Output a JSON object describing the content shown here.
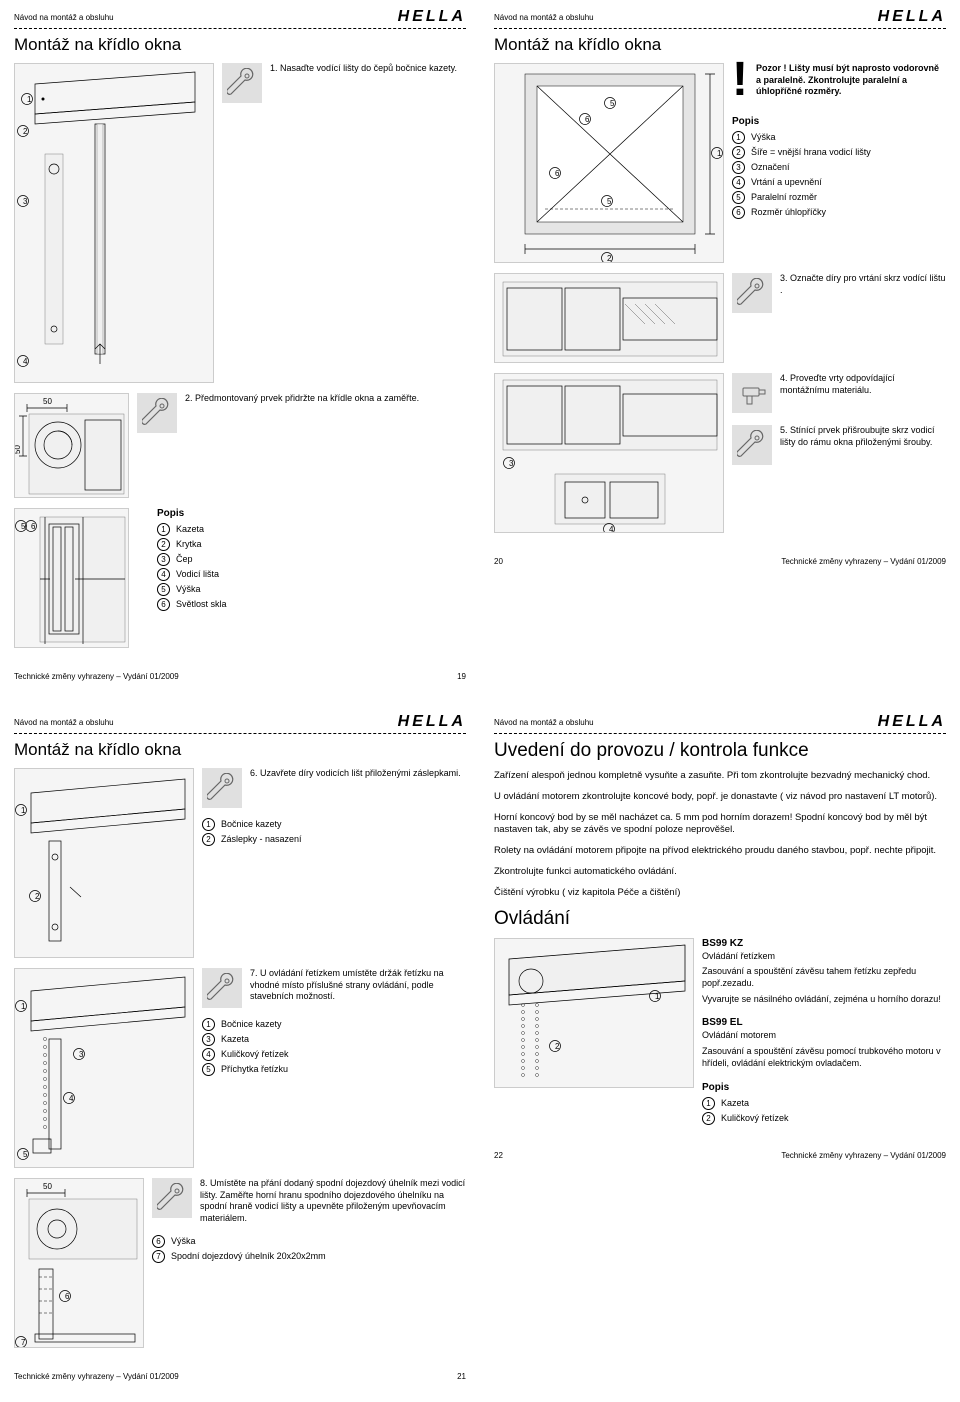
{
  "header_title": "Návod na montáž a obsluhu",
  "logo": "HELLA",
  "footer_text": "Technické změny vyhrazeny – Vydání 01/2009",
  "pages": [
    "19",
    "20",
    "21",
    "22"
  ],
  "p19": {
    "title": "Montáž na křídlo okna",
    "step1": "1. Nasaďte vodící lišty do čepů bočnice kazety.",
    "step2": "2. Předmontovaný prvek přidržte na křídle okna a zaměřte.",
    "popis_heading": "Popis",
    "popis": [
      {
        "n": "1",
        "t": "Kazeta"
      },
      {
        "n": "2",
        "t": "Krytka"
      },
      {
        "n": "3",
        "t": "Čep"
      },
      {
        "n": "4",
        "t": "Vodicí lišta"
      },
      {
        "n": "5",
        "t": "Výška"
      },
      {
        "n": "6",
        "t": "Světlost skla"
      }
    ],
    "dim50": "50"
  },
  "p20": {
    "title": "Montáž na křídlo okna",
    "warn": "Pozor ! Lišty musí být naprosto vodorovně a paralelně. Zkontrolujte paralelní a úhlopříčné rozměry.",
    "popis_heading": "Popis",
    "popis": [
      {
        "n": "1",
        "t": "Výška"
      },
      {
        "n": "2",
        "t": "Šíře = vnější hrana vodicí lišty"
      },
      {
        "n": "3",
        "t": "Označení"
      },
      {
        "n": "4",
        "t": "Vrtání a upevnění"
      },
      {
        "n": "5",
        "t": "Paralelní rozměr"
      },
      {
        "n": "6",
        "t": "Rozměr úhlopříčky"
      }
    ],
    "step3": "3. Označte díry pro vrtání skrz vodící lištu .",
    "step4": "4. Proveďte vrty odpovídající montážnímu materiálu.",
    "step5": "5. Stínící prvek přišroubujte skrz vodicí lišty do rámu okna přiloženými šrouby."
  },
  "p21": {
    "title": "Montáž na křídlo okna",
    "step6": "6. Uzavřete díry vodicích lišt přiloženými záslepkami.",
    "popis6": [
      {
        "n": "1",
        "t": "Bočnice kazety"
      },
      {
        "n": "2",
        "t": "Záslepky - nasazení"
      }
    ],
    "step7": "7. U ovládání řetízkem umístěte držák řetízku na vhodné místo příslušné strany ovládání, podle stavebních možností.",
    "popis7": [
      {
        "n": "1",
        "t": "Bočnice kazety"
      },
      {
        "n": "3",
        "t": "Kazeta"
      },
      {
        "n": "4",
        "t": "Kuličkový řetízek"
      },
      {
        "n": "5",
        "t": "Příchytka řetízku"
      }
    ],
    "step8": "8. Umístěte na přání dodaný spodní dojezdový úhelník mezi vodicí lišty. Zaměřte horní hranu spodního dojezdového úhelníku na spodní hraně vodicí lišty a upevněte přiloženým upevňovacím materiálem.",
    "popis8": [
      {
        "n": "6",
        "t": "Výška"
      },
      {
        "n": "7",
        "t": "Spodní dojezdový úhelník 20x20x2mm"
      }
    ],
    "dim50": "50"
  },
  "p22": {
    "title1": "Uvedení do provozu / kontrola funkce",
    "para1": "Zařízení alespoň jednou kompletně vysuňte a zasuňte. Při tom zkontrolujte bezvadný mechanický chod.",
    "para2": "U ovládání motorem zkontrolujte koncové body, popř. je donastavte ( viz návod pro nastavení LT motorů).",
    "para3": "Horní koncový bod by se měl nacházet ca. 5 mm pod horním dorazem! Spodní koncový bod by měl být nastaven tak, aby se závěs ve spodní poloze neprověšel.",
    "para4": "Rolety na ovládání motorem připojte na přívod elektrického proudu daného stavbou, popř. nechte připojit.",
    "para5": "Zkontrolujte funkci automatického ovládání.",
    "para6": "Čištění výrobku ( viz kapitola Péče a čištění)",
    "title2": "Ovládání",
    "kz_title": "BS99 KZ",
    "kz_sub": "Ovládání řetízkem",
    "kz_text1": "Zasouvání a spouštění závěsu tahem řetízku zepředu popř.zezadu.",
    "kz_text2": "Vyvarujte se násilného ovládání, zejména u horního dorazu!",
    "el_title": "BS99 EL",
    "el_sub": "Ovládání motorem",
    "el_text": "Zasouvání a spouštění závěsu pomocí trubkového motoru v hřídeli, ovládání elektrickým ovladačem.",
    "popis_heading": "Popis",
    "popis": [
      {
        "n": "1",
        "t": "Kazeta"
      },
      {
        "n": "2",
        "t": "Kuličkový řetízek"
      }
    ]
  }
}
